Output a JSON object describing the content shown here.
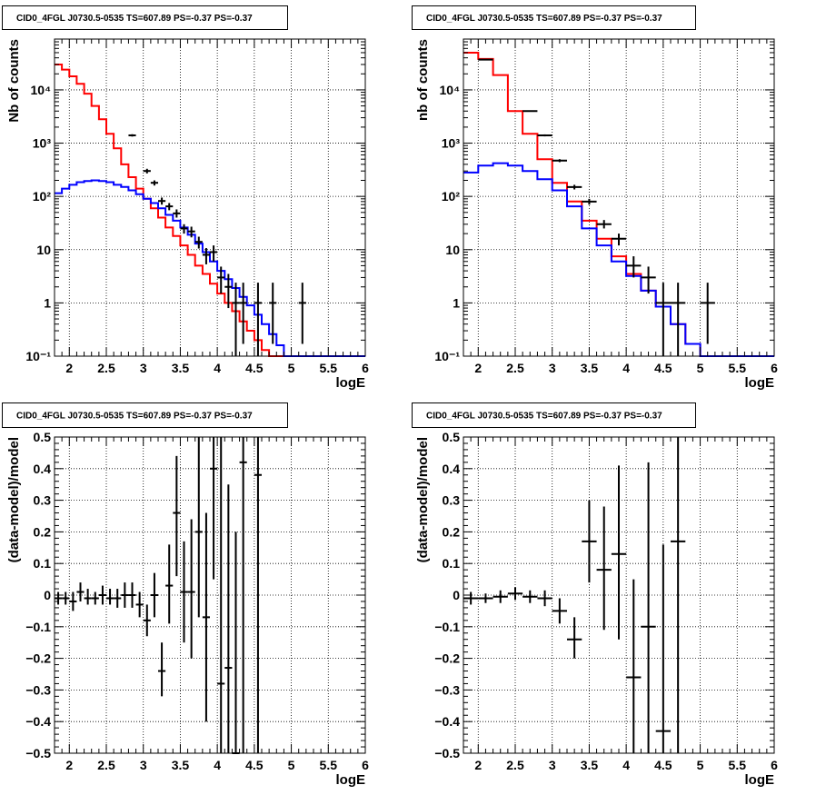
{
  "chart_data": [
    {
      "type": "histogram",
      "title": "CID0_4FGL J0730.5-0535 TS=607.89 PS=-0.37 PS=-0.37",
      "xlabel": "logE",
      "ylabel": "Nb of counts",
      "xlim": [
        1.8,
        6
      ],
      "ylim": [
        0.1,
        90000
      ],
      "log_y": true,
      "grid": true,
      "x_ticks": [
        "2",
        "2.5",
        "3",
        "3.5",
        "4",
        "4.5",
        "5",
        "5.5",
        "6"
      ],
      "y_ticks": [
        "10⁻¹",
        "1",
        "10",
        "10²",
        "10³",
        "10⁴"
      ],
      "bin_width": 0.1,
      "model_total": {
        "color": "#ff0000",
        "x0": 1.8,
        "values": [
          30000,
          24000,
          18000,
          13000,
          8500,
          5000,
          2800,
          1500,
          800,
          400,
          230,
          140,
          90,
          60,
          40,
          26,
          18,
          12,
          8,
          5,
          3.5,
          2.3,
          1.5,
          1,
          0.7,
          0.45,
          0.3,
          0.2,
          0.13,
          0.1,
          0.1,
          0.1,
          0.1,
          0.1,
          0.1,
          0.1,
          0.1,
          0.1,
          0.1,
          0.1,
          0.1,
          0.1
        ]
      },
      "model_source": {
        "color": "#0000ff",
        "x0": 1.8,
        "values": [
          115,
          140,
          165,
          185,
          195,
          200,
          195,
          185,
          165,
          150,
          130,
          110,
          90,
          75,
          60,
          45,
          35,
          26,
          19,
          13,
          9,
          6,
          4,
          2.8,
          1.9,
          1.3,
          0.9,
          0.6,
          0.4,
          0.26,
          0.16,
          0.1,
          0.1,
          0.1,
          0.1,
          0.1,
          0.1,
          0.1,
          0.1,
          0.1,
          0.1,
          0.1
        ]
      },
      "data_points": [
        {
          "x": 2.85,
          "y": 1400,
          "lo": 1330,
          "hi": 1470
        },
        {
          "x": 3.05,
          "y": 300,
          "lo": 270,
          "hi": 330
        },
        {
          "x": 3.15,
          "y": 180,
          "lo": 160,
          "hi": 200
        },
        {
          "x": 3.25,
          "y": 82,
          "lo": 70,
          "hi": 95
        },
        {
          "x": 3.35,
          "y": 65,
          "lo": 55,
          "hi": 75
        },
        {
          "x": 3.45,
          "y": 48,
          "lo": 40,
          "hi": 57
        },
        {
          "x": 3.55,
          "y": 25,
          "lo": 20,
          "hi": 30
        },
        {
          "x": 3.65,
          "y": 22,
          "lo": 17,
          "hi": 27
        },
        {
          "x": 3.75,
          "y": 14,
          "lo": 10.5,
          "hi": 17.5
        },
        {
          "x": 3.85,
          "y": 8,
          "lo": 5.3,
          "hi": 10.7
        },
        {
          "x": 3.95,
          "y": 9,
          "lo": 6,
          "hi": 12
        },
        {
          "x": 4.05,
          "y": 3,
          "lo": 1.5,
          "hi": 4.8
        },
        {
          "x": 4.15,
          "y": 2,
          "lo": 0.8,
          "hi": 3.5
        },
        {
          "x": 4.25,
          "y": 1,
          "lo": 0.1,
          "hi": 2.4
        },
        {
          "x": 4.35,
          "y": 1,
          "lo": 0.17,
          "hi": 2.4
        },
        {
          "x": 4.55,
          "y": 1,
          "lo": 0.1,
          "hi": 2.4
        },
        {
          "x": 4.75,
          "y": 1,
          "lo": 0.17,
          "hi": 2.4
        },
        {
          "x": 5.15,
          "y": 1,
          "lo": 0.17,
          "hi": 2.4
        }
      ]
    },
    {
      "type": "histogram",
      "title": "CID0_4FGL J0730.5-0535 TS=607.89 PS=-0.37 PS=-0.37",
      "xlabel": "logE",
      "ylabel": "nb of counts",
      "xlim": [
        1.8,
        6
      ],
      "ylim": [
        0.1,
        90000
      ],
      "log_y": true,
      "grid": true,
      "x_ticks": [
        "2",
        "2.5",
        "3",
        "3.5",
        "4",
        "4.5",
        "5",
        "5.5",
        "6"
      ],
      "y_ticks": [
        "10⁻¹",
        "1",
        "10",
        "10²",
        "10³",
        "10⁴"
      ],
      "bin_width": 0.2,
      "model_total": {
        "color": "#ff0000",
        "x0": 1.8,
        "values": [
          50000,
          38000,
          19000,
          4000,
          1500,
          500,
          180,
          80,
          35,
          16,
          7.5,
          3.5,
          1.7,
          0.85,
          0.4,
          0.17,
          0.1,
          0.1,
          0.1,
          0.1,
          0.1
        ]
      },
      "model_source": {
        "color": "#0000ff",
        "x0": 1.8,
        "values": [
          280,
          380,
          420,
          380,
          300,
          210,
          130,
          65,
          25,
          12,
          6,
          3.2,
          1.7,
          0.85,
          0.4,
          0.17,
          0.1,
          0.1,
          0.1,
          0.1,
          0.1
        ]
      },
      "data_points": [
        {
          "x": 2.1,
          "y": 37000,
          "lo": 36500,
          "hi": 37500
        },
        {
          "x": 2.7,
          "y": 4000,
          "lo": 3900,
          "hi": 4100
        },
        {
          "x": 2.9,
          "y": 1400,
          "lo": 1340,
          "hi": 1460
        },
        {
          "x": 3.1,
          "y": 470,
          "lo": 440,
          "hi": 500
        },
        {
          "x": 3.3,
          "y": 150,
          "lo": 135,
          "hi": 165
        },
        {
          "x": 3.5,
          "y": 80,
          "lo": 70,
          "hi": 90
        },
        {
          "x": 3.7,
          "y": 30,
          "lo": 25,
          "hi": 36
        },
        {
          "x": 3.9,
          "y": 16,
          "lo": 12,
          "hi": 20
        },
        {
          "x": 4.1,
          "y": 5,
          "lo": 3,
          "hi": 7.5
        },
        {
          "x": 4.3,
          "y": 3,
          "lo": 1.5,
          "hi": 4.8
        },
        {
          "x": 4.5,
          "y": 1,
          "lo": 0.1,
          "hi": 2.4
        },
        {
          "x": 4.7,
          "y": 1,
          "lo": 0.1,
          "hi": 2.4
        },
        {
          "x": 5.1,
          "y": 1,
          "lo": 0.17,
          "hi": 2.4
        }
      ]
    },
    {
      "type": "scatter",
      "title": "CID0_4FGL J0730.5-0535 TS=607.89 PS=-0.37 PS=-0.37",
      "xlabel": "logE",
      "ylabel": "(data-model)/model",
      "xlim": [
        1.8,
        6
      ],
      "ylim": [
        -0.5,
        0.5
      ],
      "log_y": false,
      "grid": true,
      "x_ticks": [
        "2",
        "2.5",
        "3",
        "3.5",
        "4",
        "4.5",
        "5",
        "5.5",
        "6"
      ],
      "y_ticks": [
        "−0.5",
        "−0.4",
        "−0.3",
        "−0.2",
        "−0.1",
        "0",
        "0.1",
        "0.2",
        "0.3",
        "0.4",
        "0.5"
      ],
      "bin_width": 0.1,
      "points": [
        {
          "x": 1.85,
          "y": -0.01,
          "lo": -0.03,
          "hi": 0.01
        },
        {
          "x": 1.95,
          "y": -0.01,
          "lo": -0.03,
          "hi": 0.01
        },
        {
          "x": 2.05,
          "y": -0.02,
          "lo": -0.05,
          "hi": 0.01
        },
        {
          "x": 2.15,
          "y": 0.01,
          "lo": -0.02,
          "hi": 0.04
        },
        {
          "x": 2.25,
          "y": -0.01,
          "lo": -0.03,
          "hi": 0.02
        },
        {
          "x": 2.35,
          "y": -0.01,
          "lo": -0.03,
          "hi": 0.01
        },
        {
          "x": 2.45,
          "y": 0,
          "lo": -0.03,
          "hi": 0.03
        },
        {
          "x": 2.55,
          "y": -0.01,
          "lo": -0.03,
          "hi": 0.02
        },
        {
          "x": 2.65,
          "y": -0.01,
          "lo": -0.04,
          "hi": 0.02
        },
        {
          "x": 2.75,
          "y": 0,
          "lo": -0.04,
          "hi": 0.04
        },
        {
          "x": 2.85,
          "y": 0,
          "lo": -0.04,
          "hi": 0.04
        },
        {
          "x": 2.95,
          "y": -0.03,
          "lo": -0.07,
          "hi": 0.01
        },
        {
          "x": 3.05,
          "y": -0.08,
          "lo": -0.13,
          "hi": -0.03
        },
        {
          "x": 3.15,
          "y": 0,
          "lo": -0.07,
          "hi": 0.07
        },
        {
          "x": 3.25,
          "y": -0.24,
          "lo": -0.32,
          "hi": -0.15
        },
        {
          "x": 3.35,
          "y": 0.03,
          "lo": -0.09,
          "hi": 0.16
        },
        {
          "x": 3.45,
          "y": 0.26,
          "lo": 0.06,
          "hi": 0.44
        },
        {
          "x": 3.55,
          "y": 0.01,
          "lo": -0.15,
          "hi": 0.17
        },
        {
          "x": 3.65,
          "y": 0.01,
          "lo": -0.2,
          "hi": 0.24
        },
        {
          "x": 3.75,
          "y": 0.2,
          "lo": -0.07,
          "hi": 0.5
        },
        {
          "x": 3.85,
          "y": -0.07,
          "lo": -0.4,
          "hi": 0.26
        },
        {
          "x": 3.95,
          "y": 0.4,
          "lo": 0.05,
          "hi": 0.5
        },
        {
          "x": 4.05,
          "y": -0.28,
          "lo": -0.5,
          "hi": 0.5
        },
        {
          "x": 4.15,
          "y": -0.23,
          "lo": -0.5,
          "hi": 0.35
        },
        {
          "x": 4.25,
          "y": -0.5,
          "lo": -0.5,
          "hi": 0.2
        },
        {
          "x": 4.35,
          "y": 0.42,
          "lo": -0.5,
          "hi": 0.5
        },
        {
          "x": 4.55,
          "y": 0.38,
          "lo": -0.5,
          "hi": 0.5
        }
      ]
    },
    {
      "type": "scatter",
      "title": "CID0_4FGL J0730.5-0535 TS=607.89 PS=-0.37 PS=-0.37",
      "xlabel": "logE",
      "ylabel": "(data-model)/model",
      "xlim": [
        1.8,
        6
      ],
      "ylim": [
        -0.5,
        0.5
      ],
      "log_y": false,
      "grid": true,
      "x_ticks": [
        "2",
        "2.5",
        "3",
        "3.5",
        "4",
        "4.5",
        "5",
        "5.5",
        "6"
      ],
      "y_ticks": [
        "−0.5",
        "−0.4",
        "−0.3",
        "−0.2",
        "−0.1",
        "0",
        "0.1",
        "0.2",
        "0.3",
        "0.4",
        "0.5"
      ],
      "bin_width": 0.2,
      "points": [
        {
          "x": 1.9,
          "y": -0.01,
          "lo": -0.03,
          "hi": 0.01
        },
        {
          "x": 2.1,
          "y": -0.01,
          "lo": -0.025,
          "hi": 0.005
        },
        {
          "x": 2.3,
          "y": -0.005,
          "lo": -0.025,
          "hi": 0.015
        },
        {
          "x": 2.5,
          "y": 0.005,
          "lo": -0.015,
          "hi": 0.025
        },
        {
          "x": 2.7,
          "y": -0.005,
          "lo": -0.025,
          "hi": 0.015
        },
        {
          "x": 2.9,
          "y": -0.01,
          "lo": -0.035,
          "hi": 0.015
        },
        {
          "x": 3.1,
          "y": -0.05,
          "lo": -0.09,
          "hi": -0.01
        },
        {
          "x": 3.3,
          "y": -0.14,
          "lo": -0.2,
          "hi": -0.07
        },
        {
          "x": 3.5,
          "y": 0.17,
          "lo": 0.04,
          "hi": 0.3
        },
        {
          "x": 3.7,
          "y": 0.08,
          "lo": -0.11,
          "hi": 0.28
        },
        {
          "x": 3.9,
          "y": 0.13,
          "lo": -0.14,
          "hi": 0.41
        },
        {
          "x": 4.1,
          "y": -0.26,
          "lo": -0.5,
          "hi": 0.05
        },
        {
          "x": 4.3,
          "y": -0.1,
          "lo": -0.5,
          "hi": 0.42
        },
        {
          "x": 4.5,
          "y": -0.43,
          "lo": -0.5,
          "hi": 0.16
        },
        {
          "x": 4.7,
          "y": 0.17,
          "lo": -0.5,
          "hi": 0.5
        }
      ]
    }
  ]
}
